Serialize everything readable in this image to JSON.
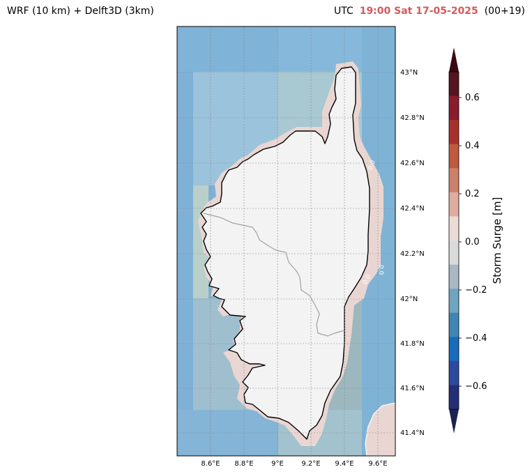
{
  "header": {
    "left_title": "WRF (10 km) + Delft3D (3km)",
    "utc_label": "UTC",
    "timestamp": "19:00 Sat 17-05-2025",
    "forecast_step": "(00+19)"
  },
  "map": {
    "lat_labels": [
      "43°N",
      "42.8°N",
      "42.6°N",
      "42.4°N",
      "42.2°N",
      "42°N",
      "41.8°N",
      "41.6°N",
      "41.4°N"
    ],
    "lon_labels": [
      "8.6°E",
      "8.8°E",
      "9°E",
      "9.2°E",
      "9.4°E",
      "9.6°E"
    ],
    "contour_labels": [
      "0.0",
      "0.0",
      "0.0"
    ],
    "colors": {
      "sea_base": "#7fb1d6",
      "land": "#f3f3f3",
      "coast_buffer": "#e9d6d2",
      "coastline": "#000000",
      "border": "#a0a0a0"
    }
  },
  "colorbar": {
    "label": "Storm Surge [m]",
    "ticks": [
      "0.6",
      "0.4",
      "0.2",
      "0.0",
      "−0.2",
      "−0.4",
      "−0.6"
    ],
    "range": [
      -0.7,
      0.7
    ],
    "extend": "both",
    "colors_top_to_bottom": [
      "#571421",
      "#8b1b2f",
      "#a8302c",
      "#be5a3d",
      "#cd8069",
      "#deada0",
      "#ebdcd8",
      "#dadada",
      "#aab8c4",
      "#6fa5bf",
      "#3f86b5",
      "#176bbd",
      "#2c4aa0",
      "#262e78"
    ],
    "extend_top_color": "#3a0a14",
    "extend_bottom_color": "#1c2250"
  }
}
